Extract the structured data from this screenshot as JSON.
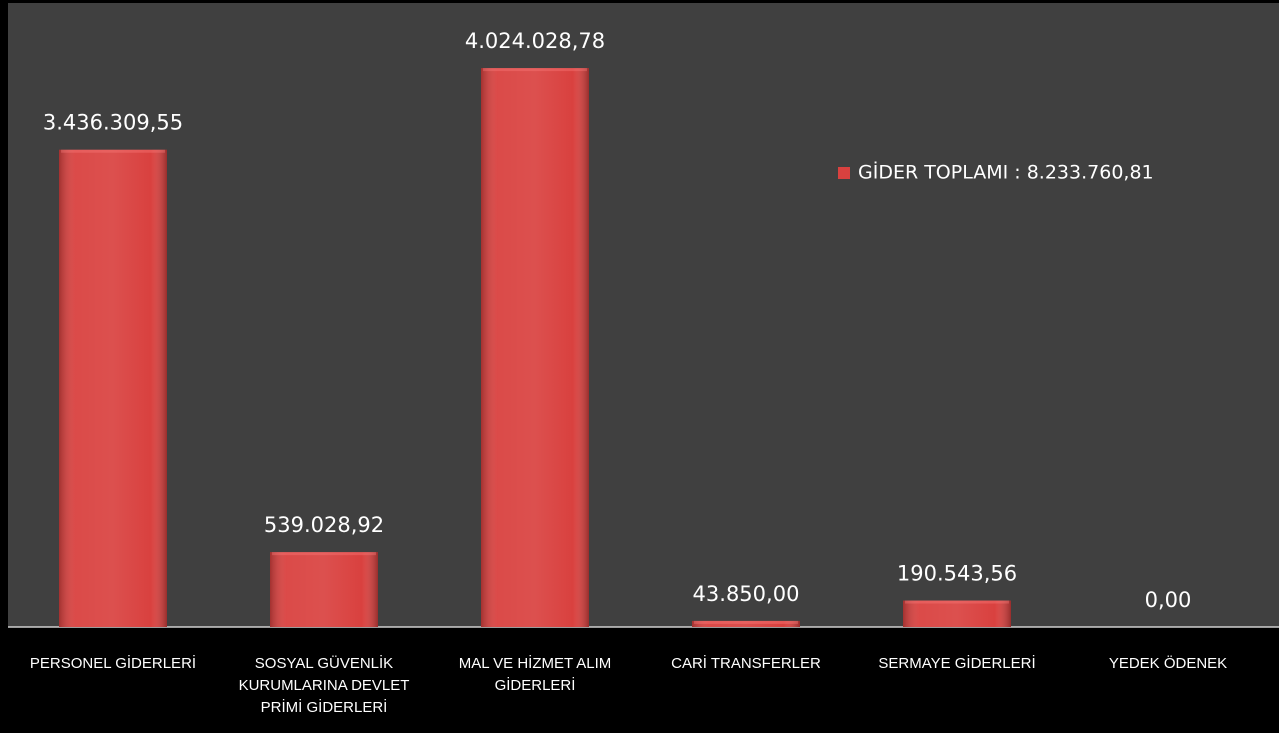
{
  "chart_data": {
    "type": "bar",
    "categories": [
      "PERSONEL GİDERLERİ",
      "SOSYAL GÜVENLİK KURUMLARINA DEVLET PRİMİ GİDERLERİ",
      "MAL VE HİZMET ALIM GİDERLERİ",
      "CARİ TRANSFERLER",
      "SERMAYE GİDERLERİ",
      "YEDEK ÖDENEK"
    ],
    "series": [
      {
        "name": "GİDER TOPLAMI : 8.233.760,81",
        "color": "#d9413f",
        "values": [
          3436309.55,
          539028.92,
          4024028.78,
          43850.0,
          190543.56,
          0
        ],
        "value_labels": [
          "3.436.309,55",
          "539.028,92",
          "4.024.028,78",
          "43.850,00",
          "190.543,56",
          "0,00"
        ]
      }
    ],
    "ylim": [
      0,
      4500000
    ],
    "legend": "right"
  }
}
